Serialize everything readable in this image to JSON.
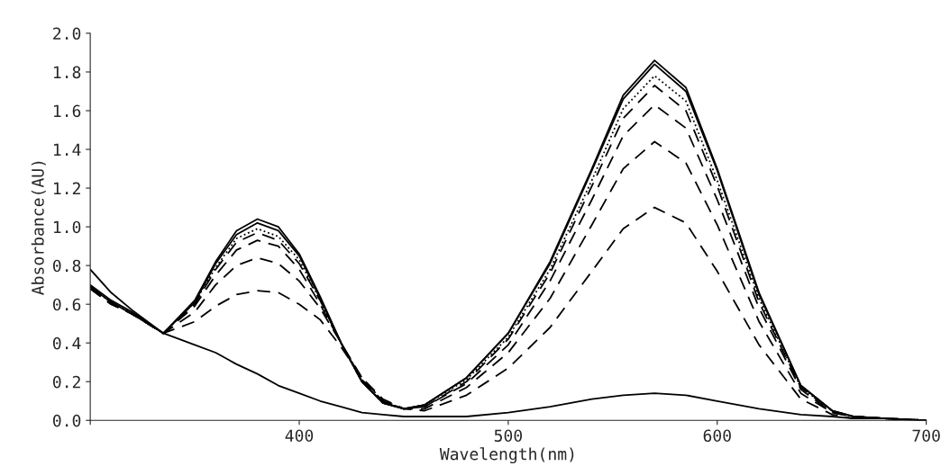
{
  "chart_data": {
    "type": "line",
    "xlabel": "Wavelength(nm)",
    "ylabel": "Absorbance(AU)",
    "x": [
      300,
      310,
      320,
      335,
      350,
      360,
      370,
      380,
      390,
      400,
      410,
      420,
      430,
      440,
      450,
      460,
      480,
      500,
      520,
      540,
      555,
      570,
      585,
      600,
      620,
      640,
      655,
      665,
      680,
      700
    ],
    "xlim": [
      300,
      700
    ],
    "xticks": [
      {
        "value": 300,
        "label": null
      },
      400,
      500,
      600,
      700
    ],
    "ylim": [
      0,
      2.0
    ],
    "yticks": [
      {
        "value": 0,
        "label": "0.0"
      },
      0.2,
      0.4,
      0.6,
      0.8,
      {
        "value": 1.0,
        "label": "1.0"
      },
      1.2,
      1.4,
      1.6,
      1.8,
      {
        "value": 2.0,
        "label": "2.0"
      }
    ],
    "grid": false,
    "legend": false,
    "marker": "none",
    "series": [
      {
        "color": "#000000",
        "line_style": "solid",
        "values": [
          0.7,
          0.62,
          0.56,
          0.45,
          0.62,
          0.82,
          0.98,
          1.04,
          1.0,
          0.86,
          0.64,
          0.4,
          0.2,
          0.09,
          0.06,
          0.08,
          0.22,
          0.45,
          0.82,
          1.3,
          1.68,
          1.86,
          1.72,
          1.3,
          0.66,
          0.18,
          0.05,
          0.02,
          0.01,
          0.0
        ]
      },
      {
        "color": "#000000",
        "line_style": "solid",
        "values": [
          0.69,
          0.61,
          0.55,
          0.45,
          0.61,
          0.81,
          0.96,
          1.02,
          0.98,
          0.85,
          0.63,
          0.4,
          0.2,
          0.09,
          0.06,
          0.08,
          0.22,
          0.45,
          0.81,
          1.29,
          1.66,
          1.84,
          1.7,
          1.29,
          0.65,
          0.18,
          0.05,
          0.02,
          0.01,
          0.0
        ]
      },
      {
        "color": "#000000",
        "line_style": "dotted",
        "values": [
          0.69,
          0.61,
          0.55,
          0.45,
          0.61,
          0.79,
          0.94,
          0.99,
          0.95,
          0.83,
          0.62,
          0.4,
          0.2,
          0.09,
          0.06,
          0.08,
          0.21,
          0.43,
          0.78,
          1.24,
          1.61,
          1.78,
          1.65,
          1.24,
          0.63,
          0.17,
          0.05,
          0.02,
          0.01,
          0.0
        ]
      },
      {
        "color": "#000000",
        "line_style": "dashed",
        "values": [
          0.69,
          0.61,
          0.55,
          0.45,
          0.6,
          0.78,
          0.92,
          0.97,
          0.93,
          0.81,
          0.62,
          0.4,
          0.2,
          0.09,
          0.06,
          0.07,
          0.2,
          0.42,
          0.76,
          1.21,
          1.56,
          1.73,
          1.6,
          1.21,
          0.61,
          0.17,
          0.05,
          0.02,
          0.01,
          0.0
        ]
      },
      {
        "color": "#000000",
        "line_style": "dashed",
        "values": [
          0.69,
          0.61,
          0.55,
          0.45,
          0.59,
          0.75,
          0.88,
          0.93,
          0.9,
          0.78,
          0.6,
          0.4,
          0.21,
          0.1,
          0.06,
          0.07,
          0.19,
          0.39,
          0.72,
          1.14,
          1.47,
          1.63,
          1.51,
          1.14,
          0.58,
          0.16,
          0.04,
          0.02,
          0.01,
          0.0
        ]
      },
      {
        "color": "#000000",
        "line_style": "dashed",
        "values": [
          0.68,
          0.6,
          0.55,
          0.45,
          0.56,
          0.7,
          0.8,
          0.84,
          0.81,
          0.72,
          0.58,
          0.4,
          0.22,
          0.1,
          0.06,
          0.06,
          0.17,
          0.35,
          0.63,
          1.01,
          1.3,
          1.44,
          1.33,
          1.01,
          0.51,
          0.14,
          0.04,
          0.02,
          0.01,
          0.0
        ]
      },
      {
        "color": "#000000",
        "line_style": "dashed",
        "values": [
          0.68,
          0.6,
          0.55,
          0.45,
          0.51,
          0.59,
          0.65,
          0.67,
          0.66,
          0.6,
          0.52,
          0.38,
          0.22,
          0.11,
          0.06,
          0.05,
          0.13,
          0.27,
          0.48,
          0.77,
          0.99,
          1.1,
          1.02,
          0.77,
          0.39,
          0.11,
          0.03,
          0.01,
          0.01,
          0.0
        ]
      },
      {
        "color": "#000000",
        "line_style": "solid",
        "values": [
          0.78,
          0.66,
          0.57,
          0.45,
          0.39,
          0.35,
          0.29,
          0.24,
          0.18,
          0.14,
          0.1,
          0.07,
          0.04,
          0.03,
          0.02,
          0.02,
          0.02,
          0.04,
          0.07,
          0.11,
          0.13,
          0.14,
          0.13,
          0.1,
          0.06,
          0.03,
          0.02,
          0.01,
          0.01,
          0.0
        ]
      }
    ]
  }
}
